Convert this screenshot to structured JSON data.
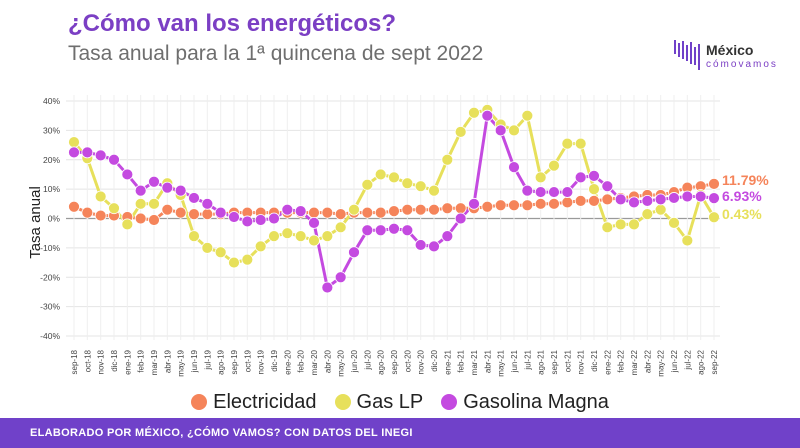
{
  "header": {
    "title": "¿Cómo van los energéticos?",
    "subtitle": "Tasa anual para la 1ª quincena de sept 2022"
  },
  "logo": {
    "line1": "México",
    "line2": "cómovamos"
  },
  "footer": {
    "text": "ELABORADO POR MÉXICO, ¿CÓMO VAMOS? CON DATOS DEL INEGI"
  },
  "colors": {
    "electricidad": "#f5845a",
    "gas_lp": "#e7e05b",
    "gasolina": "#c44ae0",
    "brand": "#7041c9"
  },
  "chart_data": {
    "type": "line",
    "ylabel": "Tasa anual",
    "ylim": [
      -40,
      40
    ],
    "yticks": [
      "40%",
      "30%",
      "20%",
      "10%",
      "0%",
      "-10%",
      "-20%",
      "-30%",
      "-40%"
    ],
    "grid": true,
    "legend_position": "bottom",
    "categories": [
      "sep-18",
      "oct-18",
      "nov-18",
      "dic-18",
      "ene-19",
      "feb-19",
      "mar-19",
      "abr-19",
      "may-19",
      "jun-19",
      "jul-19",
      "ago-19",
      "sep-19",
      "oct-19",
      "nov-19",
      "dic-19",
      "ene-20",
      "feb-20",
      "mar-20",
      "abr-20",
      "may-20",
      "jun-20",
      "jul-20",
      "ago-20",
      "sep-20",
      "oct-20",
      "nov-20",
      "dic-20",
      "ene-21",
      "feb-21",
      "mar-21",
      "abr-21",
      "may-21",
      "jun-21",
      "jul-21",
      "ago-21",
      "sep-21",
      "oct-21",
      "nov-21",
      "dic-21",
      "ene-22",
      "feb-22",
      "mar-22",
      "abr-22",
      "may-22",
      "jun-22",
      "jul-22",
      "ago-22",
      "sep-22"
    ],
    "series": [
      {
        "name": "Electricidad",
        "color": "#f5845a",
        "end_label": "11.79%",
        "values": [
          4,
          2,
          1,
          1,
          0.5,
          0,
          -0.5,
          3,
          2,
          1.5,
          1.5,
          1.5,
          2,
          2,
          2,
          2,
          2,
          2,
          2,
          2,
          1.5,
          2,
          2,
          2,
          2.5,
          3,
          3,
          3,
          3.5,
          3.5,
          3.5,
          4,
          4.5,
          4.5,
          4.5,
          5,
          5,
          5.5,
          6,
          6,
          6.5,
          7,
          7.5,
          8,
          8,
          9,
          10.5,
          11,
          11.79
        ]
      },
      {
        "name": "Gas LP",
        "color": "#e7e05b",
        "end_label": "0.43%",
        "values": [
          26,
          20.5,
          7.5,
          3.5,
          -2,
          5,
          5,
          12,
          8,
          -6,
          -10,
          -11.5,
          -15,
          -14,
          -9.5,
          -6,
          -5,
          -6,
          -7.5,
          -6,
          -3,
          3,
          11.5,
          15,
          14,
          12,
          11,
          9.5,
          20,
          29.5,
          36,
          37,
          32,
          30,
          35,
          14,
          18,
          25.5,
          25.5,
          10,
          -3,
          -2,
          -2,
          1.5,
          3,
          -1.5,
          -7.5,
          8,
          0.43
        ]
      },
      {
        "name": "Gasolina Magna",
        "color": "#c44ae0",
        "end_label": "6.93%",
        "values": [
          22.5,
          22.5,
          21.5,
          20,
          15,
          9.5,
          12.5,
          10.5,
          9.5,
          7,
          5,
          2,
          0.5,
          -1,
          -0.5,
          0,
          3,
          2.5,
          -1.5,
          -23.5,
          -20,
          -11.5,
          -4,
          -4,
          -3.5,
          -4,
          -9,
          -9.5,
          -6,
          0,
          5,
          35,
          30,
          17.5,
          9.5,
          9,
          9,
          9,
          14,
          14.5,
          11,
          6.5,
          5.5,
          6,
          6.5,
          7,
          7.5,
          7.5,
          6.93
        ]
      }
    ]
  }
}
